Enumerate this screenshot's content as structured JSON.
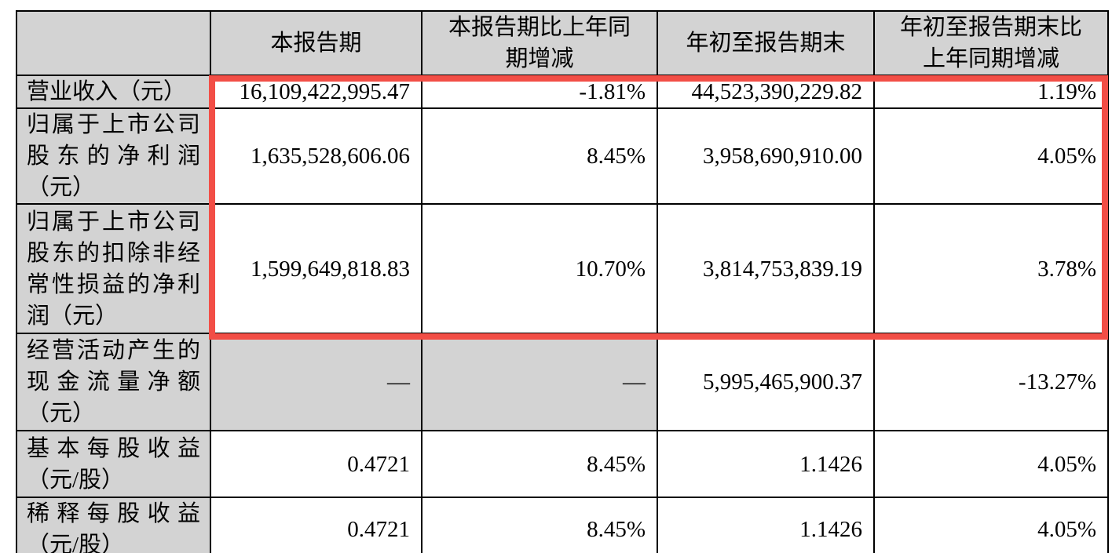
{
  "colors": {
    "cell_gray": "#d3d3d3",
    "highlight_red": "#f24e46",
    "border_black": "#000000"
  },
  "table": {
    "columns": [
      {
        "label": ""
      },
      {
        "label": "本报告期"
      },
      {
        "label": "本报告期比上年同\n期增减"
      },
      {
        "label": "年初至报告期末"
      },
      {
        "label": "年初至报告期末比\n上年同期增减"
      }
    ],
    "rows": [
      {
        "label": "营业收入（元）",
        "values": [
          "16,109,422,995.47",
          "-1.81%",
          "44,523,390,229.82",
          "1.19%"
        ],
        "gray_value_cols": []
      },
      {
        "label": "归属于上市公司股东的净利润（元）",
        "values": [
          "1,635,528,606.06",
          "8.45%",
          "3,958,690,910.00",
          "4.05%"
        ],
        "gray_value_cols": []
      },
      {
        "label": "归属于上市公司股东的扣除非经常性损益的净利润（元）",
        "values": [
          "1,599,649,818.83",
          "10.70%",
          "3,814,753,839.19",
          "3.78%"
        ],
        "gray_value_cols": []
      },
      {
        "label": "经营活动产生的现金流量净额（元）",
        "values": [
          "—",
          "—",
          "5,995,465,900.37",
          "-13.27%"
        ],
        "gray_value_cols": [
          0,
          1
        ]
      },
      {
        "label": "基本每股收益（元/股）",
        "values": [
          "0.4721",
          "8.45%",
          "1.1426",
          "4.05%"
        ],
        "gray_value_cols": []
      },
      {
        "label": "稀释每股收益（元/股）",
        "values": [
          "0.4721",
          "8.45%",
          "1.1426",
          "4.05%"
        ],
        "gray_value_cols": []
      }
    ]
  }
}
